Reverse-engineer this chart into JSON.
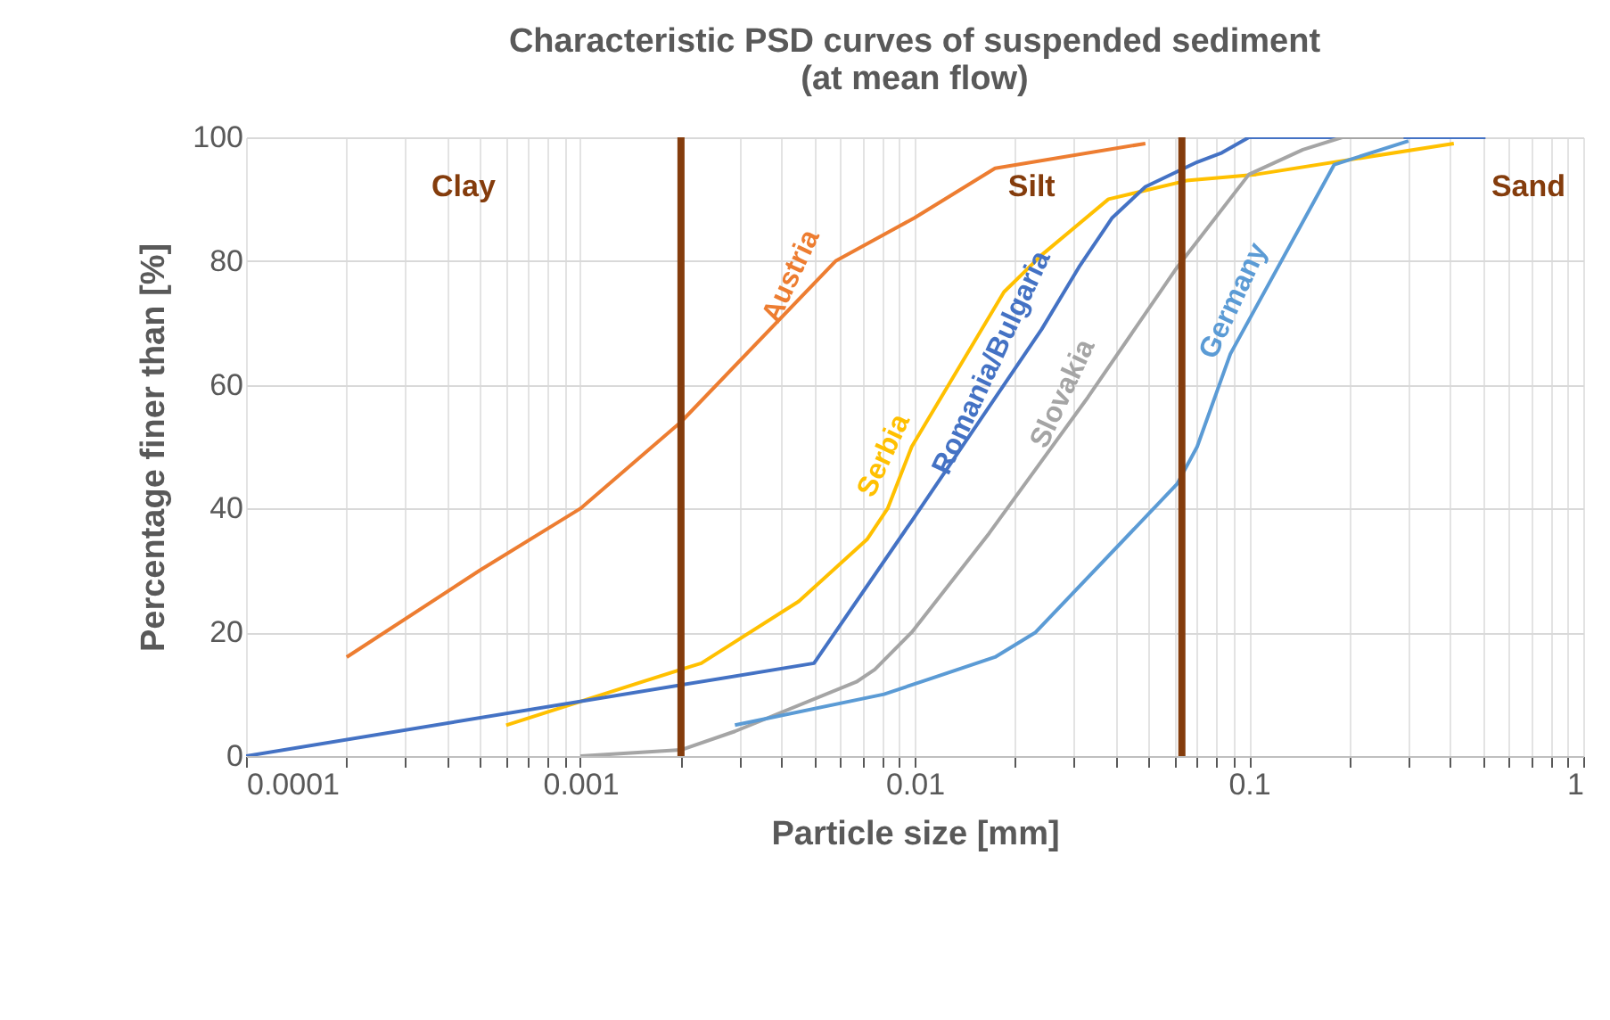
{
  "chart_data": {
    "type": "line",
    "title": "Characteristic PSD curves of suspended sediment\n(at mean flow)",
    "xlabel": "Particle size [mm]",
    "ylabel": "Percentage finer than [%]",
    "log": "x",
    "grid": true,
    "legend": false,
    "marker": "none",
    "line_style": "solid",
    "xlim": [
      0.0001,
      1
    ],
    "ylim": [
      0,
      100
    ],
    "xticks": [
      0.0001,
      {
        "value": 0.0002,
        "label": null
      },
      {
        "value": 0.0003,
        "label": null
      },
      {
        "value": 0.0004,
        "label": null
      },
      {
        "value": 0.0005,
        "label": null
      },
      {
        "value": 0.0006,
        "label": null
      },
      {
        "value": 0.0007,
        "label": null
      },
      {
        "value": 0.0008,
        "label": null
      },
      {
        "value": 0.0009,
        "label": null
      },
      0.001,
      {
        "value": 0.002,
        "label": null
      },
      {
        "value": 0.003,
        "label": null
      },
      {
        "value": 0.004,
        "label": null
      },
      {
        "value": 0.005,
        "label": null
      },
      {
        "value": 0.006,
        "label": null
      },
      {
        "value": 0.007,
        "label": null
      },
      {
        "value": 0.008,
        "label": null
      },
      {
        "value": 0.009,
        "label": null
      },
      0.01,
      {
        "value": 0.02,
        "label": null
      },
      {
        "value": 0.03,
        "label": null
      },
      {
        "value": 0.04,
        "label": null
      },
      {
        "value": 0.05,
        "label": null
      },
      {
        "value": 0.06,
        "label": null
      },
      {
        "value": 0.07,
        "label": null
      },
      {
        "value": 0.08,
        "label": null
      },
      {
        "value": 0.09,
        "label": null
      },
      0.1,
      {
        "value": 0.2,
        "label": null
      },
      {
        "value": 0.3,
        "label": null
      },
      {
        "value": 0.4,
        "label": null
      },
      {
        "value": 0.5,
        "label": null
      },
      {
        "value": 0.6,
        "label": null
      },
      {
        "value": 0.7,
        "label": null
      },
      {
        "value": 0.8,
        "label": null
      },
      {
        "value": 0.9,
        "label": null
      },
      1
    ],
    "yticks": [
      0,
      20,
      40,
      60,
      80,
      100
    ],
    "ref_lines": [
      {
        "axis": "x",
        "value": 0.002,
        "color": "#843c0c"
      },
      {
        "axis": "x",
        "value": 0.063,
        "color": "#843c0c"
      }
    ],
    "annotations": [
      "Clay",
      "Silt",
      "Sand"
    ],
    "series": [
      {
        "name": "Austria",
        "color": "#ed7d31",
        "x": [
          0.0002,
          0.0005,
          0.001,
          0.002,
          0.0058,
          0.01,
          0.0174,
          0.049
        ],
        "values": [
          16,
          30,
          40,
          54,
          80,
          87,
          95,
          99
        ]
      },
      {
        "name": "Serbia",
        "color": "#ffc000",
        "x": [
          0.0006,
          0.002,
          0.0023,
          0.0045,
          0.0072,
          0.0083,
          0.0098,
          0.0185,
          0.024,
          0.038,
          0.065,
          0.105,
          0.41
        ],
        "values": [
          5,
          14,
          15,
          25,
          35,
          40,
          50,
          75,
          81,
          90,
          93,
          94,
          99
        ]
      },
      {
        "name": "Romania/Bulgaria",
        "color": "#4472c4",
        "x": [
          0.0001,
          0.005,
          0.0098,
          0.024,
          0.031,
          0.039,
          0.049,
          0.07,
          0.083,
          0.1,
          0.51
        ],
        "values": [
          0,
          15,
          38,
          69,
          79,
          87,
          92,
          96,
          97.5,
          100,
          100
        ]
      },
      {
        "name": "Slovakia",
        "color": "#a5a5a5",
        "x": [
          0.001,
          0.002,
          0.0029,
          0.0067,
          0.0076,
          0.0098,
          0.0167,
          0.033,
          0.061,
          0.1,
          0.145,
          0.19,
          0.29
        ],
        "values": [
          0,
          1,
          4,
          12,
          14,
          20,
          36,
          58,
          79,
          94,
          98,
          100,
          100
        ]
      },
      {
        "name": "Germany",
        "color": "#5b9bd5",
        "x": [
          0.0029,
          0.0081,
          0.0174,
          0.023,
          0.061,
          0.07,
          0.088,
          0.18,
          0.3
        ],
        "values": [
          5,
          10,
          16,
          20,
          44,
          50,
          65,
          95.6,
          99.4
        ]
      }
    ]
  }
}
